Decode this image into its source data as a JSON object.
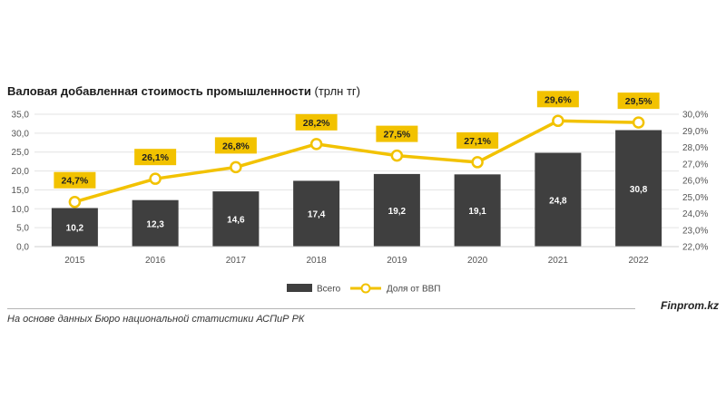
{
  "title": {
    "main": "Валовая добавленная стоимость промышленности",
    "unit": "(трлн тг)"
  },
  "source": "На основе данных Бюро национальной статистики АСПиР РК",
  "brand": "Finprom.kz",
  "colors": {
    "bar": "#3f3f3f",
    "line": "#f2c200",
    "label_bg": "#f2c200",
    "grid": "#e3e3e3"
  },
  "chart_data": {
    "type": "bar",
    "categories": [
      "2015",
      "2016",
      "2017",
      "2018",
      "2019",
      "2020",
      "2021",
      "2022"
    ],
    "series": [
      {
        "name": "Всего",
        "type": "bar",
        "axis": "left",
        "values": [
          10.2,
          12.3,
          14.6,
          17.4,
          19.2,
          19.1,
          24.8,
          30.8
        ],
        "labels": [
          "10,2",
          "12,3",
          "14,6",
          "17,4",
          "19,2",
          "19,1",
          "24,8",
          "30,8"
        ]
      },
      {
        "name": "Доля от ВВП",
        "type": "line",
        "axis": "right",
        "values": [
          24.7,
          26.1,
          26.8,
          28.2,
          27.5,
          27.1,
          29.6,
          29.5
        ],
        "labels": [
          "24,7%",
          "26,1%",
          "26,8%",
          "28,2%",
          "27,5%",
          "27,1%",
          "29,6%",
          "29,5%"
        ]
      }
    ],
    "y_left": {
      "min": 0,
      "max": 35,
      "step": 5,
      "ticks": [
        "0,0",
        "5,0",
        "10,0",
        "15,0",
        "20,0",
        "25,0",
        "30,0",
        "35,0"
      ]
    },
    "y_right": {
      "min": 22,
      "max": 30,
      "step": 1,
      "ticks": [
        "22,0%",
        "23,0%",
        "24,0%",
        "25,0%",
        "26,0%",
        "27,0%",
        "28,0%",
        "29,0%",
        "30,0%"
      ]
    },
    "grid": true,
    "legend_position": "bottom"
  }
}
